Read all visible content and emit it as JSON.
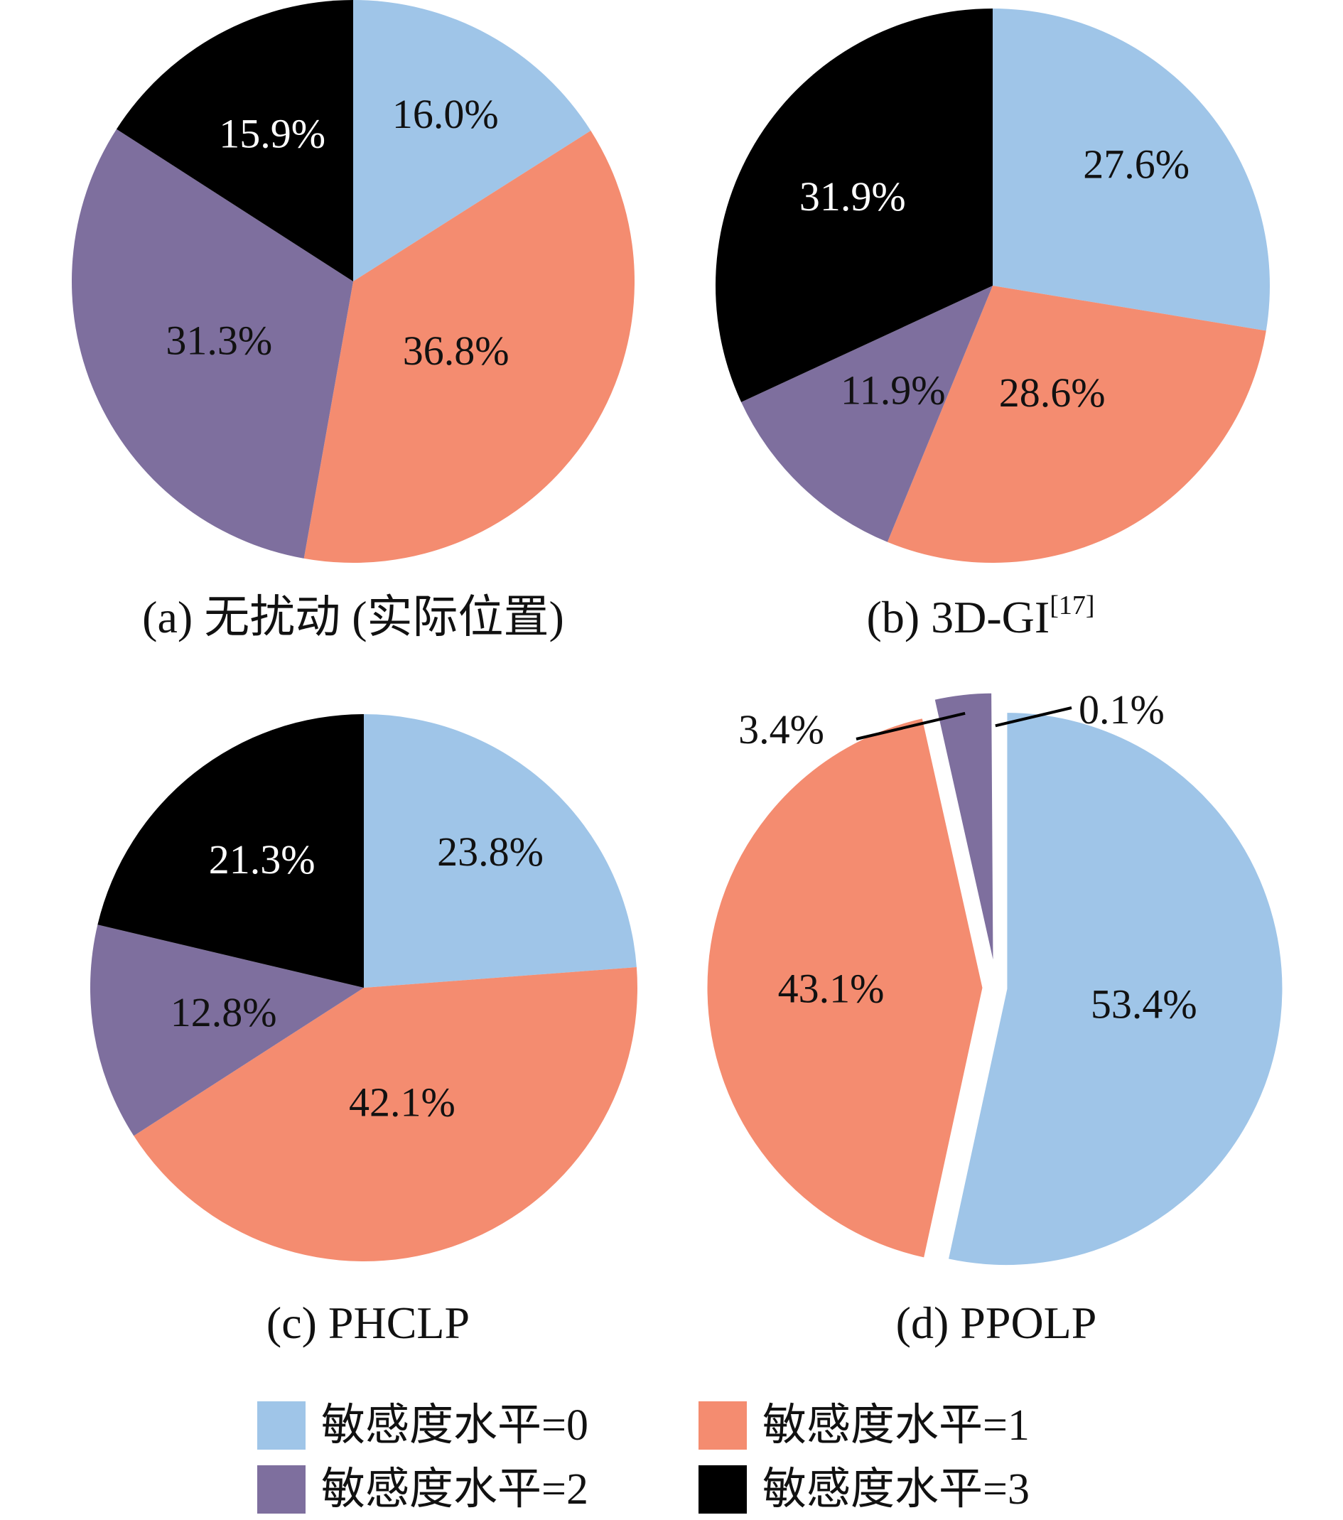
{
  "chart_data": [
    {
      "type": "pie",
      "caption": "(a) 无扰动 (实际位置)",
      "caption_sup": "",
      "slices": [
        {
          "level": 0,
          "value": 16.0,
          "label": "16.0%"
        },
        {
          "level": 1,
          "value": 36.8,
          "label": "36.8%"
        },
        {
          "level": 2,
          "value": 31.3,
          "label": "31.3%"
        },
        {
          "level": 3,
          "value": 15.9,
          "label": "15.9%"
        }
      ]
    },
    {
      "type": "pie",
      "caption": "(b) 3D-GI",
      "caption_sup": "[17]",
      "slices": [
        {
          "level": 0,
          "value": 27.6,
          "label": "27.6%"
        },
        {
          "level": 1,
          "value": 28.6,
          "label": "28.6%"
        },
        {
          "level": 2,
          "value": 11.9,
          "label": "11.9%"
        },
        {
          "level": 3,
          "value": 31.9,
          "label": "31.9%"
        }
      ]
    },
    {
      "type": "pie",
      "caption": "(c) PHCLP",
      "caption_sup": "",
      "slices": [
        {
          "level": 0,
          "value": 23.8,
          "label": "23.8%"
        },
        {
          "level": 1,
          "value": 42.1,
          "label": "42.1%"
        },
        {
          "level": 2,
          "value": 12.8,
          "label": "12.8%"
        },
        {
          "level": 3,
          "value": 21.3,
          "label": "21.3%"
        }
      ]
    },
    {
      "type": "pie",
      "caption": "(d) PPOLP",
      "caption_sup": "",
      "exploded": true,
      "slices": [
        {
          "level": 0,
          "value": 53.4,
          "label": "53.4%"
        },
        {
          "level": 1,
          "value": 43.1,
          "label": "43.1%"
        },
        {
          "level": 2,
          "value": 3.4,
          "label": "3.4%"
        },
        {
          "level": 3,
          "value": 0.1,
          "label": "0.1%"
        }
      ]
    }
  ],
  "legend": [
    {
      "level": 0,
      "label": "敏感度水平=0"
    },
    {
      "level": 1,
      "label": "敏感度水平=1"
    },
    {
      "level": 2,
      "label": "敏感度水平=2"
    },
    {
      "level": 3,
      "label": "敏感度水平=3"
    }
  ],
  "colors": {
    "level0": "#9fc5e8",
    "level1": "#f48c70",
    "level2": "#7e6f9e",
    "level3": "#000000"
  }
}
